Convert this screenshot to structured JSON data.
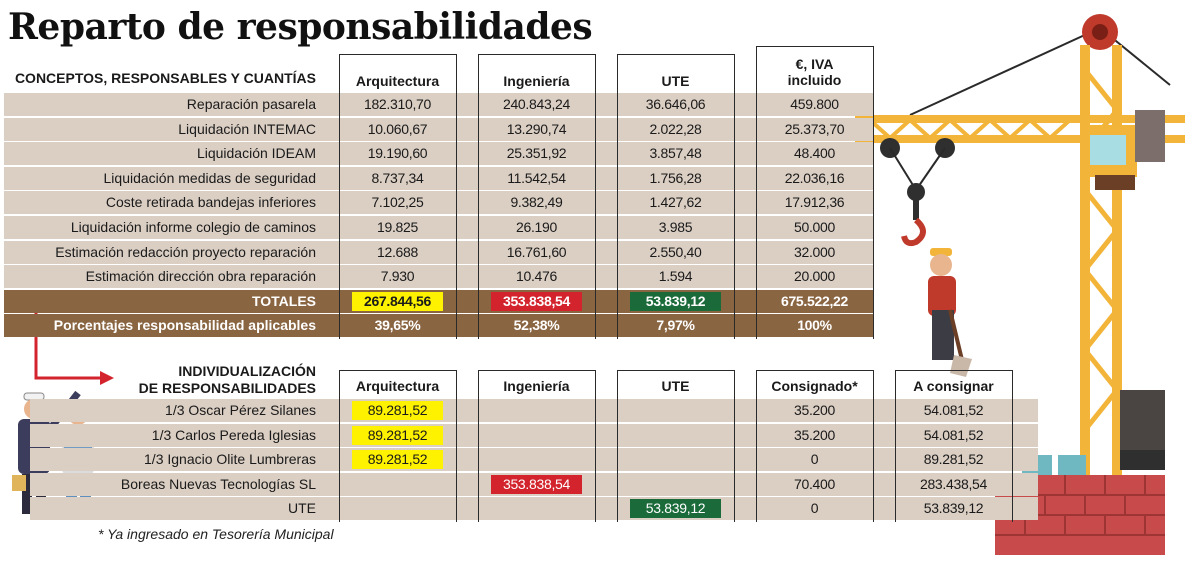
{
  "title": "Reparto de responsabilidades",
  "chart_data": {
    "type": "table",
    "table1": {
      "header_label": "CONCEPTOS, RESPONSABLES Y CUANTÍAS",
      "columns": [
        "Arquitectura",
        "Ingeniería",
        "UTE",
        "€, IVA incluido"
      ],
      "rows": [
        {
          "label": "Reparación pasarela",
          "values": [
            "182.310,70",
            "240.843,24",
            "36.646,06",
            "459.800"
          ]
        },
        {
          "label": "Liquidación INTEMAC",
          "values": [
            "10.060,67",
            "13.290,74",
            "2.022,28",
            "25.373,70"
          ]
        },
        {
          "label": "Liquidación IDEAM",
          "values": [
            "19.190,60",
            "25.351,92",
            "3.857,48",
            "48.400"
          ]
        },
        {
          "label": "Liquidación medidas de seguridad",
          "values": [
            "8.737,34",
            "11.542,54",
            "1.756,28",
            "22.036,16"
          ]
        },
        {
          "label": "Coste retirada bandejas inferiores",
          "values": [
            "7.102,25",
            "9.382,49",
            "1.427,62",
            "17.912,36"
          ]
        },
        {
          "label": "Liquidación informe colegio de caminos",
          "values": [
            "19.825",
            "26.190",
            "3.985",
            "50.000"
          ]
        },
        {
          "label": "Estimación redacción proyecto reparación",
          "values": [
            "12.688",
            "16.761,60",
            "2.550,40",
            "32.000"
          ]
        },
        {
          "label": "Estimación dirección obra reparación",
          "values": [
            "7.930",
            "10.476",
            "1.594",
            "20.000"
          ]
        }
      ],
      "totals": {
        "label": "TOTALES",
        "values": [
          "267.844,56",
          "353.838,54",
          "53.839,12",
          "675.522,22"
        ]
      },
      "percentages": {
        "label": "Porcentajes responsabilidad aplicables",
        "values": [
          "39,65%",
          "52,38%",
          "7,97%",
          "100%"
        ]
      }
    },
    "table2": {
      "header_label_line1": "INDIVIDUALIZACIÓN",
      "header_label_line2": "DE RESPONSABILIDADES",
      "columns": [
        "Arquitectura",
        "Ingeniería",
        "UTE",
        "Consignado*",
        "A consignar"
      ],
      "rows": [
        {
          "label": "1/3 Oscar Pérez Silanes",
          "values": [
            "89.281,52",
            "",
            "",
            "35.200",
            "54.081,52"
          ]
        },
        {
          "label": "1/3 Carlos Pereda Iglesias",
          "values": [
            "89.281,52",
            "",
            "",
            "35.200",
            "54.081,52"
          ]
        },
        {
          "label": "1/3 Ignacio Olite Lumbreras",
          "values": [
            "89.281,52",
            "",
            "",
            "0",
            "89.281,52"
          ]
        },
        {
          "label": "Boreas Nuevas Tecnologías SL",
          "values": [
            "",
            "353.838,54",
            "",
            "70.400",
            "283.438,54"
          ]
        },
        {
          "label": "UTE",
          "values": [
            "",
            "",
            "53.839,12",
            "0",
            "53.839,12"
          ]
        }
      ]
    }
  },
  "footnote": "* Ya ingresado en Tesorería Municipal",
  "colors": {
    "band_light": "#dbcfc4",
    "band_dark": "#8a6542",
    "highlight_arquitectura": "#fff200",
    "highlight_ingenieria": "#d3232c",
    "highlight_ute": "#1a6a3a",
    "arrow": "#d3232c"
  },
  "illustrations": [
    "tower-crane-icon",
    "construction-worker-icon",
    "engineers-pointing-icon",
    "brick-wall-icon"
  ]
}
